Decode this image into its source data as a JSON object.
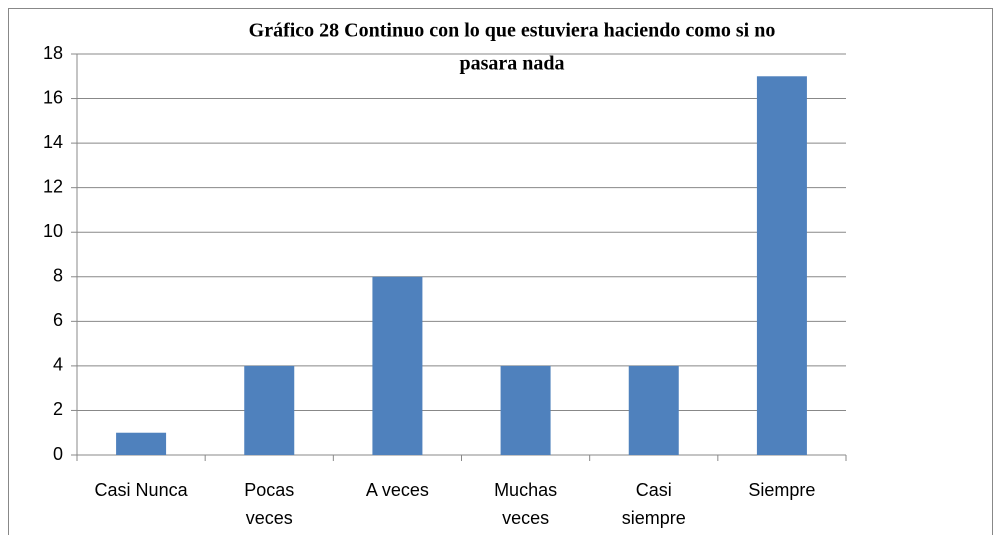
{
  "chart_data": {
    "type": "bar",
    "title": [
      "Gráfico 28 Continuo con lo que estuviera haciendo como si no",
      "pasara nada"
    ],
    "categories": [
      [
        "Casi Nunca"
      ],
      [
        "Pocas",
        "veces"
      ],
      [
        "A veces"
      ],
      [
        "Muchas",
        "veces"
      ],
      [
        "Casi",
        "siempre"
      ],
      [
        "Siempre"
      ]
    ],
    "values": [
      1,
      4,
      8,
      4,
      4,
      17
    ],
    "color": "#4f81bd",
    "ylim": [
      0,
      18
    ],
    "yticks": [
      0,
      2,
      4,
      6,
      8,
      10,
      12,
      14,
      16,
      18
    ],
    "grid": true
  }
}
